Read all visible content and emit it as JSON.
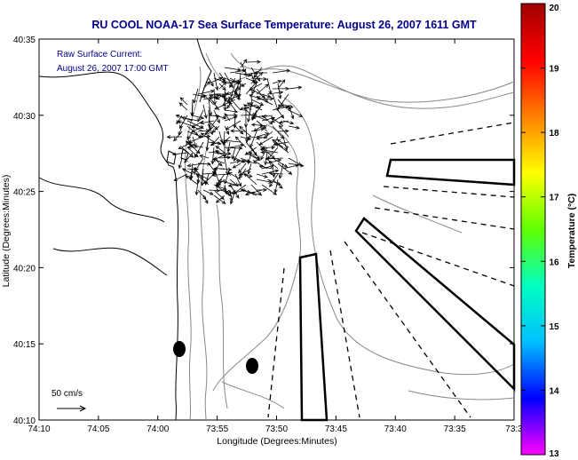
{
  "title": "RU COOL  NOAA-17  Sea Surface Temperature:  August 26, 2007 1611 GMT",
  "annotation": {
    "line1": "Raw Surface Current:",
    "line2": "August 26, 2007 17:00 GMT"
  },
  "scale_label": "50 cm/s",
  "axes": {
    "xlabel": "Longitude (Degrees:Minutes)",
    "ylabel": "Latitude (Degrees:Minutes)",
    "xticks": [
      "74:10",
      "74:05",
      "74:00",
      "73:55",
      "73:50",
      "73:45",
      "73:40",
      "73:35",
      "73:3"
    ],
    "yticks": [
      "40:35",
      "40:30",
      "40:25",
      "40:20",
      "40:15",
      "40:10"
    ]
  },
  "colorbar": {
    "label": "Temperature (°C)",
    "ticks": [
      "20",
      "19",
      "18",
      "17",
      "16",
      "15",
      "14",
      "13"
    ],
    "min": 13,
    "max": 20,
    "colors": [
      "#ff00ff",
      "#0000ff",
      "#00c0ff",
      "#00ffc0",
      "#60ff00",
      "#ffff00",
      "#ff8000",
      "#ff0000",
      "#a00000"
    ]
  },
  "colors": {
    "title": "#00008b",
    "annotation": "#00008b",
    "contour": "#888888",
    "vectors": "#000000"
  }
}
